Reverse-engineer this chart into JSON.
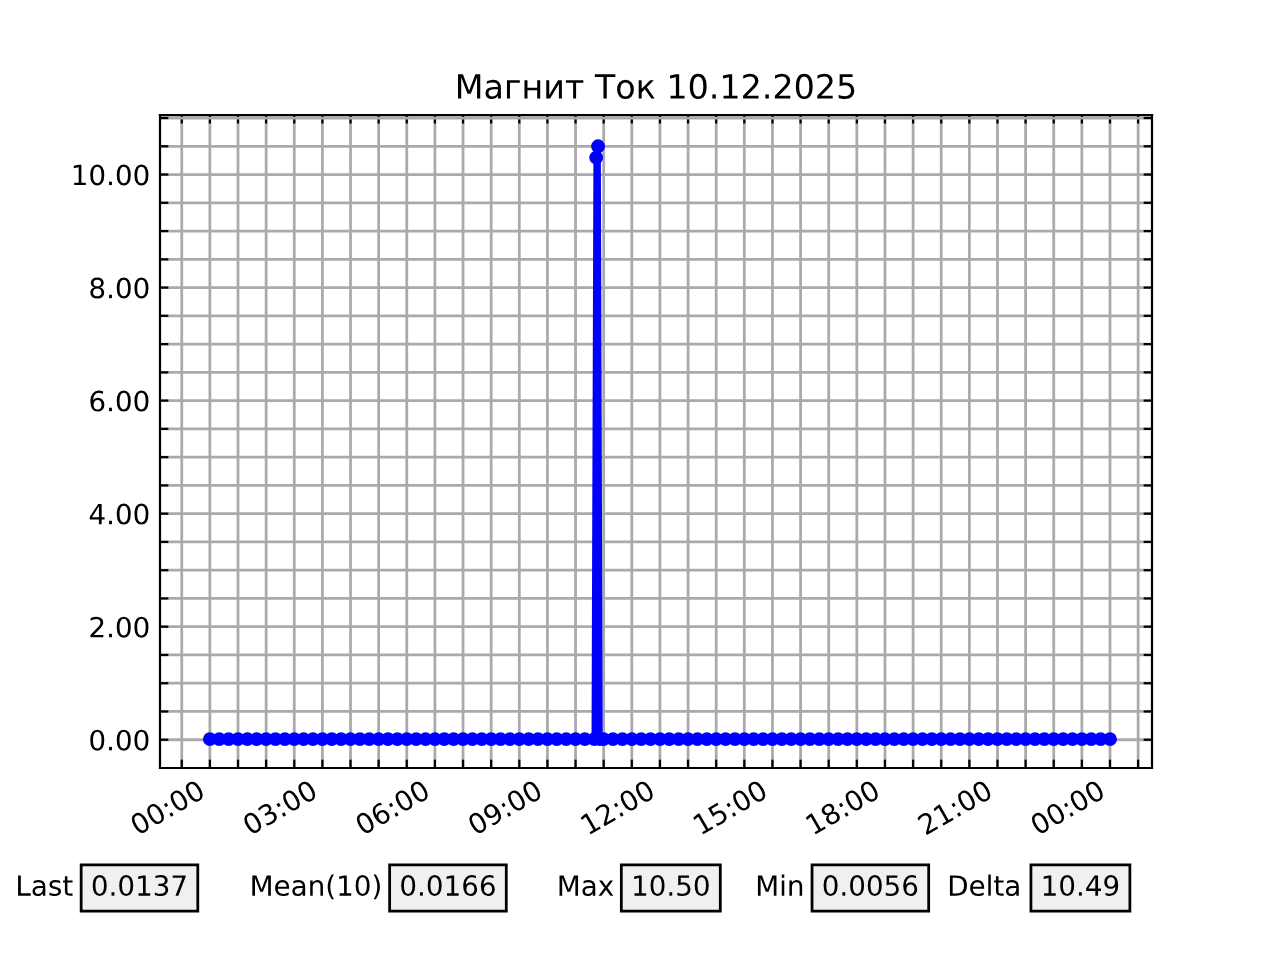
{
  "chart_data": {
    "type": "line",
    "title": "Магнит Ток 10.12.2025",
    "x": [
      0,
      0.25,
      0.5,
      0.75,
      1,
      1.25,
      1.5,
      1.75,
      2,
      2.25,
      2.5,
      2.75,
      3,
      3.25,
      3.5,
      3.75,
      4,
      4.25,
      4.5,
      4.75,
      5,
      5.25,
      5.5,
      5.75,
      6,
      6.25,
      6.5,
      6.75,
      7,
      7.25,
      7.5,
      7.75,
      8,
      8.25,
      8.5,
      8.75,
      9,
      9.25,
      9.5,
      9.75,
      10,
      10.25,
      10.3,
      10.35,
      10.4,
      10.5,
      10.75,
      11,
      11.25,
      11.5,
      11.75,
      12,
      12.25,
      12.5,
      12.75,
      13,
      13.25,
      13.5,
      13.75,
      14,
      14.25,
      14.5,
      14.75,
      15,
      15.25,
      15.5,
      15.75,
      16,
      16.25,
      16.5,
      16.75,
      17,
      17.25,
      17.5,
      17.75,
      18,
      18.25,
      18.5,
      18.75,
      19,
      19.25,
      19.5,
      19.75,
      20,
      20.25,
      20.5,
      20.75,
      21,
      21.25,
      21.5,
      21.75,
      22,
      22.25,
      22.5,
      22.75,
      23,
      23.25,
      23.5,
      23.75,
      24
    ],
    "series": [
      {
        "color": "#0000ff",
        "values": [
          0.01,
          0.01,
          0.01,
          0.01,
          0.01,
          0.01,
          0.01,
          0.01,
          0.01,
          0.01,
          0.01,
          0.01,
          0.01,
          0.01,
          0.01,
          0.01,
          0.01,
          0.01,
          0.01,
          0.01,
          0.01,
          0.01,
          0.01,
          0.01,
          0.01,
          0.01,
          0.01,
          0.01,
          0.01,
          0.01,
          0.01,
          0.01,
          0.01,
          0.01,
          0.01,
          0.01,
          0.01,
          0.01,
          0.01,
          0.01,
          0.01,
          0.01,
          10.3,
          10.5,
          0.01,
          0.01,
          0.01,
          0.01,
          0.01,
          0.01,
          0.01,
          0.01,
          0.01,
          0.01,
          0.01,
          0.01,
          0.01,
          0.01,
          0.01,
          0.01,
          0.01,
          0.01,
          0.01,
          0.01,
          0.01,
          0.01,
          0.01,
          0.01,
          0.01,
          0.01,
          0.01,
          0.01,
          0.01,
          0.01,
          0.01,
          0.01,
          0.01,
          0.01,
          0.01,
          0.01,
          0.01,
          0.01,
          0.01,
          0.01,
          0.01,
          0.01,
          0.01,
          0.01,
          0.01,
          0.01,
          0.01,
          0.01,
          0.01,
          0.01,
          0.01,
          0.01,
          0.01,
          0.01,
          0.01,
          0.01
        ]
      }
    ],
    "marker": "circle",
    "line_style": "solid",
    "grid": true,
    "xlim": [
      -1.33,
      25.12
    ],
    "ylim": [
      -0.5,
      11.05
    ],
    "xticks": [
      {
        "value": -0.75,
        "label": null
      },
      {
        "value": 0,
        "label": "00:00"
      },
      {
        "value": 0.75,
        "label": null
      },
      {
        "value": 1.5,
        "label": null
      },
      {
        "value": 2.25,
        "label": null
      },
      {
        "value": 3,
        "label": "03:00"
      },
      {
        "value": 3.75,
        "label": null
      },
      {
        "value": 4.5,
        "label": null
      },
      {
        "value": 5.25,
        "label": null
      },
      {
        "value": 6,
        "label": "06:00"
      },
      {
        "value": 6.75,
        "label": null
      },
      {
        "value": 7.5,
        "label": null
      },
      {
        "value": 8.25,
        "label": null
      },
      {
        "value": 9,
        "label": "09:00"
      },
      {
        "value": 9.75,
        "label": null
      },
      {
        "value": 10.5,
        "label": null
      },
      {
        "value": 11.25,
        "label": null
      },
      {
        "value": 12,
        "label": "12:00"
      },
      {
        "value": 12.75,
        "label": null
      },
      {
        "value": 13.5,
        "label": null
      },
      {
        "value": 14.25,
        "label": null
      },
      {
        "value": 15,
        "label": "15:00"
      },
      {
        "value": 15.75,
        "label": null
      },
      {
        "value": 16.5,
        "label": null
      },
      {
        "value": 17.25,
        "label": null
      },
      {
        "value": 18,
        "label": "18:00"
      },
      {
        "value": 18.75,
        "label": null
      },
      {
        "value": 19.5,
        "label": null
      },
      {
        "value": 20.25,
        "label": null
      },
      {
        "value": 21,
        "label": "21:00"
      },
      {
        "value": 21.75,
        "label": null
      },
      {
        "value": 22.5,
        "label": null
      },
      {
        "value": 23.25,
        "label": null
      },
      {
        "value": 24,
        "label": "00:00"
      },
      {
        "value": 24.75,
        "label": null
      }
    ],
    "yticks": [
      {
        "value": 0,
        "label": "0.00"
      },
      {
        "value": 0.5,
        "label": null
      },
      {
        "value": 1,
        "label": null
      },
      {
        "value": 1.5,
        "label": null
      },
      {
        "value": 2,
        "label": "2.00"
      },
      {
        "value": 2.5,
        "label": null
      },
      {
        "value": 3,
        "label": null
      },
      {
        "value": 3.5,
        "label": null
      },
      {
        "value": 4,
        "label": "4.00"
      },
      {
        "value": 4.5,
        "label": null
      },
      {
        "value": 5,
        "label": null
      },
      {
        "value": 5.5,
        "label": null
      },
      {
        "value": 6,
        "label": "6.00"
      },
      {
        "value": 6.5,
        "label": null
      },
      {
        "value": 7,
        "label": null
      },
      {
        "value": 7.5,
        "label": null
      },
      {
        "value": 8,
        "label": "8.00"
      },
      {
        "value": 8.5,
        "label": null
      },
      {
        "value": 9,
        "label": null
      },
      {
        "value": 9.5,
        "label": null
      },
      {
        "value": 10,
        "label": "10.00"
      },
      {
        "value": 10.5,
        "label": null
      },
      {
        "value": 11,
        "label": null
      }
    ],
    "annotations": [
      "Last",
      "0.0137",
      "Mean(10)",
      "0.0166",
      "Max",
      "10.50",
      "Min",
      "0.0056",
      "Delta",
      "10.49"
    ]
  }
}
